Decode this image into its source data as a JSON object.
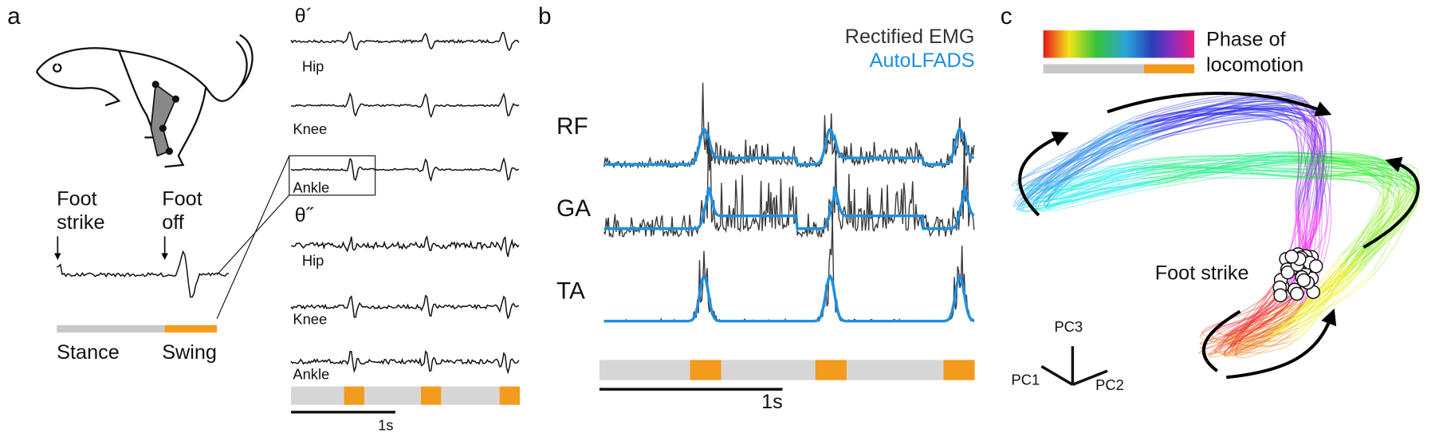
{
  "panel_a": {
    "label": "a",
    "foot_strike": [
      "Foot",
      "strike"
    ],
    "foot_off": [
      "Foot",
      "off"
    ],
    "stance": "Stance",
    "swing": "Swing",
    "velocity": {
      "symbol": "θ´",
      "joints": [
        "Hip",
        "Knee",
        "Ankle"
      ]
    },
    "acceleration": {
      "symbol": "θ˝",
      "joints": [
        "Hip",
        "Knee",
        "Ankle"
      ]
    },
    "scale": "1s"
  },
  "panel_b": {
    "label": "b",
    "legend": [
      "Rectified EMG",
      "AutoLFADS"
    ],
    "muscles": [
      "RF",
      "GA",
      "TA"
    ],
    "scale": "1s"
  },
  "panel_c": {
    "label": "c",
    "colorbar_title": [
      "Phase of",
      "locomotion"
    ],
    "foot_strike": "Foot strike",
    "axes": [
      "PC3",
      "PC1",
      "PC2"
    ]
  }
}
